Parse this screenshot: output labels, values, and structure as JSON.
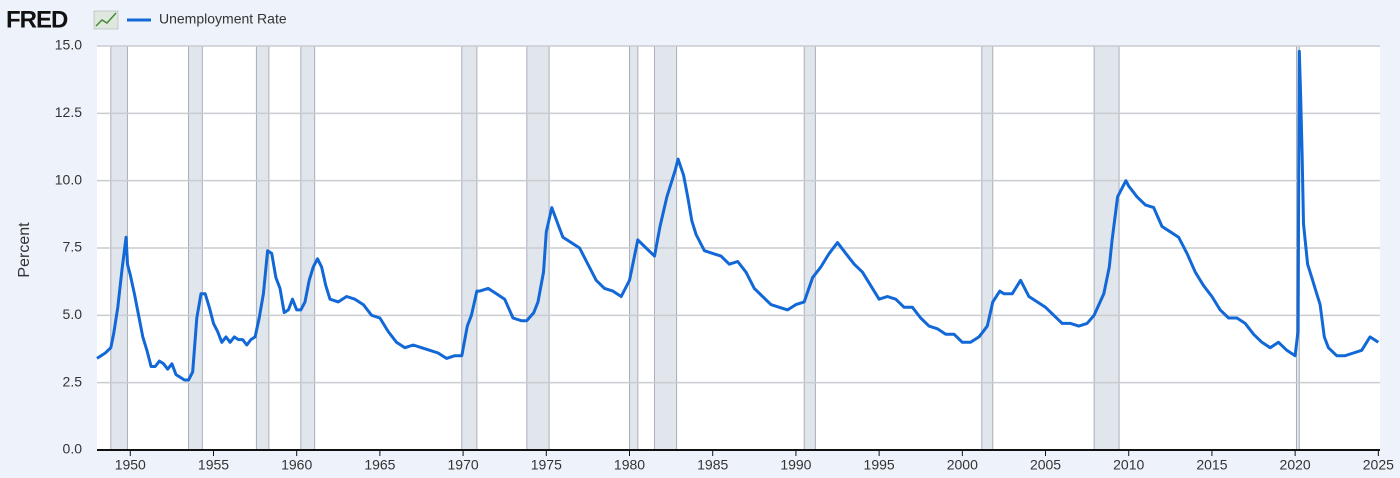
{
  "chart_data": {
    "type": "line",
    "logo": "FRED",
    "ylabel": "Percent",
    "xlim": [
      1948,
      2025.1
    ],
    "xticks": [
      1950,
      1955,
      1960,
      1965,
      1970,
      1975,
      1980,
      1985,
      1990,
      1995,
      2000,
      2005,
      2010,
      2015,
      2020,
      2025
    ],
    "ylim": [
      0,
      15
    ],
    "yticks": [
      {
        "value": 0,
        "label": "0.0"
      },
      2.5,
      {
        "value": 5,
        "label": "5.0"
      },
      7.5,
      {
        "value": 10,
        "label": "10.0"
      },
      12.5,
      {
        "value": 15,
        "label": "15.0"
      }
    ],
    "grid": true,
    "recessions": [
      [
        1948.83,
        1949.83
      ],
      [
        1953.5,
        1954.33
      ],
      [
        1957.58,
        1958.33
      ],
      [
        1960.25,
        1961.08
      ],
      [
        1969.92,
        1970.83
      ],
      [
        1973.83,
        1975.17
      ],
      [
        1980.0,
        1980.5
      ],
      [
        1981.5,
        1982.83
      ],
      [
        1990.5,
        1991.17
      ],
      [
        2001.17,
        2001.83
      ],
      [
        2007.92,
        2009.42
      ],
      [
        2020.08,
        2020.25
      ]
    ],
    "x": [
      1948.0,
      1948.5,
      1948.83,
      1949.0,
      1949.25,
      1949.5,
      1949.75,
      1949.83,
      1950.0,
      1950.25,
      1950.5,
      1950.75,
      1951.0,
      1951.25,
      1951.5,
      1951.75,
      1952.0,
      1952.25,
      1952.5,
      1952.75,
      1953.0,
      1953.25,
      1953.5,
      1953.75,
      1954.0,
      1954.25,
      1954.5,
      1954.75,
      1955.0,
      1955.25,
      1955.5,
      1955.75,
      1956.0,
      1956.25,
      1956.5,
      1956.75,
      1957.0,
      1957.25,
      1957.5,
      1957.75,
      1958.0,
      1958.25,
      1958.5,
      1958.75,
      1959.0,
      1959.25,
      1959.5,
      1959.75,
      1960.0,
      1960.25,
      1960.5,
      1960.75,
      1961.0,
      1961.25,
      1961.5,
      1961.75,
      1962.0,
      1962.5,
      1963.0,
      1963.5,
      1964.0,
      1964.5,
      1965.0,
      1965.5,
      1966.0,
      1966.5,
      1967.0,
      1967.5,
      1968.0,
      1968.5,
      1969.0,
      1969.5,
      1969.92,
      1970.25,
      1970.5,
      1970.83,
      1971.0,
      1971.5,
      1972.0,
      1972.5,
      1973.0,
      1973.5,
      1973.83,
      1974.25,
      1974.5,
      1974.83,
      1975.0,
      1975.33,
      1975.75,
      1976.0,
      1976.5,
      1977.0,
      1977.5,
      1978.0,
      1978.5,
      1979.0,
      1979.5,
      1980.0,
      1980.5,
      1981.0,
      1981.5,
      1981.83,
      1982.25,
      1982.75,
      1982.92,
      1983.25,
      1983.5,
      1983.75,
      1984.0,
      1984.5,
      1985.0,
      1985.5,
      1986.0,
      1986.5,
      1987.0,
      1987.5,
      1988.0,
      1988.5,
      1989.0,
      1989.5,
      1990.0,
      1990.5,
      1991.0,
      1991.5,
      1992.0,
      1992.5,
      1993.0,
      1993.5,
      1994.0,
      1994.5,
      1995.0,
      1995.5,
      1996.0,
      1996.5,
      1997.0,
      1997.5,
      1998.0,
      1998.5,
      1999.0,
      1999.5,
      2000.0,
      2000.5,
      2001.0,
      2001.5,
      2001.83,
      2002.25,
      2002.5,
      2003.0,
      2003.5,
      2004.0,
      2004.5,
      2005.0,
      2005.5,
      2006.0,
      2006.5,
      2007.0,
      2007.5,
      2007.92,
      2008.5,
      2008.83,
      2009.0,
      2009.33,
      2009.83,
      2010.0,
      2010.5,
      2011.0,
      2011.5,
      2012.0,
      2012.5,
      2013.0,
      2013.5,
      2014.0,
      2014.5,
      2015.0,
      2015.5,
      2016.0,
      2016.5,
      2017.0,
      2017.5,
      2018.0,
      2018.5,
      2019.0,
      2019.5,
      2020.0,
      2020.17,
      2020.25,
      2020.33,
      2020.42,
      2020.5,
      2020.75,
      2021.0,
      2021.25,
      2021.5,
      2021.75,
      2022.0,
      2022.5,
      2023.0,
      2023.5,
      2024.0,
      2024.5,
      2025.0
    ],
    "series": [
      {
        "name": "Unemployment Rate",
        "color": "#1168d6",
        "values": [
          3.4,
          3.6,
          3.8,
          4.3,
          5.3,
          6.7,
          7.9,
          6.9,
          6.5,
          5.8,
          5.0,
          4.2,
          3.7,
          3.1,
          3.1,
          3.3,
          3.2,
          3.0,
          3.2,
          2.8,
          2.7,
          2.6,
          2.6,
          2.9,
          4.9,
          5.8,
          5.8,
          5.3,
          4.7,
          4.4,
          4.0,
          4.2,
          4.0,
          4.2,
          4.1,
          4.1,
          3.9,
          4.1,
          4.2,
          4.9,
          5.8,
          7.4,
          7.3,
          6.4,
          6.0,
          5.1,
          5.2,
          5.6,
          5.2,
          5.2,
          5.5,
          6.3,
          6.8,
          7.1,
          6.8,
          6.1,
          5.6,
          5.5,
          5.7,
          5.6,
          5.4,
          5.0,
          4.9,
          4.4,
          4.0,
          3.8,
          3.9,
          3.8,
          3.7,
          3.6,
          3.4,
          3.5,
          3.5,
          4.6,
          5.0,
          5.9,
          5.9,
          6.0,
          5.8,
          5.6,
          4.9,
          4.8,
          4.8,
          5.1,
          5.5,
          6.6,
          8.1,
          9.0,
          8.3,
          7.9,
          7.7,
          7.5,
          6.9,
          6.3,
          6.0,
          5.9,
          5.7,
          6.3,
          7.8,
          7.5,
          7.2,
          8.3,
          9.4,
          10.4,
          10.8,
          10.2,
          9.4,
          8.5,
          8.0,
          7.4,
          7.3,
          7.2,
          6.9,
          7.0,
          6.6,
          6.0,
          5.7,
          5.4,
          5.3,
          5.2,
          5.4,
          5.5,
          6.4,
          6.8,
          7.3,
          7.7,
          7.3,
          6.9,
          6.6,
          6.1,
          5.6,
          5.7,
          5.6,
          5.3,
          5.3,
          4.9,
          4.6,
          4.5,
          4.3,
          4.3,
          4.0,
          4.0,
          4.2,
          4.6,
          5.5,
          5.9,
          5.8,
          5.8,
          6.3,
          5.7,
          5.5,
          5.3,
          5.0,
          4.7,
          4.7,
          4.6,
          4.7,
          5.0,
          5.8,
          6.8,
          7.8,
          9.4,
          10.0,
          9.8,
          9.4,
          9.1,
          9.0,
          8.3,
          8.1,
          7.9,
          7.3,
          6.6,
          6.1,
          5.7,
          5.2,
          4.9,
          4.9,
          4.7,
          4.3,
          4.0,
          3.8,
          4.0,
          3.7,
          3.5,
          4.4,
          14.8,
          13.2,
          11.0,
          8.4,
          6.9,
          6.4,
          5.9,
          5.4,
          4.2,
          3.8,
          3.5,
          3.5,
          3.6,
          3.7,
          4.2,
          4.0
        ]
      }
    ]
  }
}
